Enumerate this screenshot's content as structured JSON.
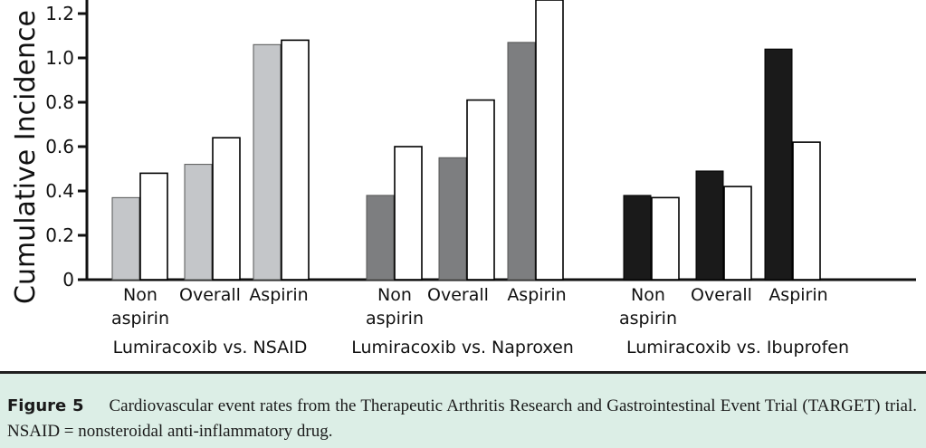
{
  "chart_data": {
    "type": "bar",
    "ylabel": "Cumulative Incidence R",
    "ylim": [
      0,
      1.3
    ],
    "y_ticks": [
      "0",
      "0.2",
      "0.4",
      "0.6",
      "0.8",
      "1.0",
      "1.2"
    ],
    "groups": [
      {
        "label": "Lumiracoxib vs. NSAID",
        "fill_color": "#c4c6c9",
        "categories": [
          {
            "label_lines": [
              "Non",
              "aspirin"
            ],
            "values": [
              0.37,
              0.48
            ]
          },
          {
            "label_lines": [
              "Overall"
            ],
            "values": [
              0.52,
              0.64
            ]
          },
          {
            "label_lines": [
              "Aspirin"
            ],
            "values": [
              1.06,
              1.08
            ]
          }
        ]
      },
      {
        "label": "Lumiracoxib vs. Naproxen",
        "fill_color": "#7d7e80",
        "categories": [
          {
            "label_lines": [
              "Non",
              "aspirin"
            ],
            "values": [
              0.38,
              0.6
            ]
          },
          {
            "label_lines": [
              "Overall"
            ],
            "values": [
              0.55,
              0.81
            ]
          },
          {
            "label_lines": [
              "Aspirin"
            ],
            "values": [
              1.07,
              1.3
            ]
          }
        ]
      },
      {
        "label": "Lumiracoxib vs. Ibuprofen",
        "fill_color": "#1a1a1a",
        "categories": [
          {
            "label_lines": [
              "Non",
              "aspirin"
            ],
            "values": [
              0.38,
              0.37
            ]
          },
          {
            "label_lines": [
              "Overall"
            ],
            "values": [
              0.49,
              0.42
            ]
          },
          {
            "label_lines": [
              "Aspirin"
            ],
            "values": [
              1.04,
              0.62
            ]
          }
        ]
      }
    ],
    "open_bar_color": "#ffffff"
  },
  "caption": {
    "figure_label": "Figure 5",
    "text": "Cardiovascular event rates from the Therapeutic Arthritis Research and Gastrointestinal Event Trial (TARGET) trial. NSAID = nonsteroidal anti-inflammatory drug."
  }
}
